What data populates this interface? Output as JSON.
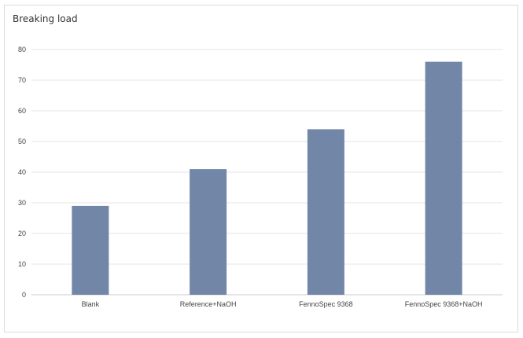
{
  "chart_data": {
    "type": "bar",
    "title": "Breaking load",
    "xlabel": "",
    "ylabel": "",
    "categories": [
      "Blank",
      "Reference+NaOH",
      "FennoSpec 9368",
      "FennoSpec 9368+NaOH"
    ],
    "values": [
      29,
      41,
      54,
      76
    ],
    "ylim": [
      0,
      80
    ],
    "yticks": [
      0,
      10,
      20,
      30,
      40,
      50,
      60,
      70,
      80
    ],
    "grid": true,
    "legend": "none",
    "bar_color": "#7286a8"
  }
}
